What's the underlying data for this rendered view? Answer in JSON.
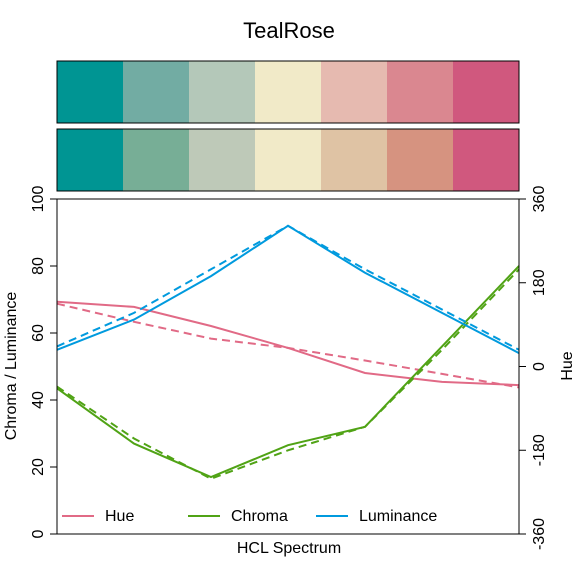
{
  "chart_data": {
    "type": "line",
    "title": "TealRose",
    "xlabel": "HCL Spectrum",
    "ylabel_left": "Chroma / Luminance",
    "ylabel_right": "Hue",
    "ylim_left": [
      0,
      100
    ],
    "yticks_left": [
      0,
      20,
      40,
      60,
      80,
      100
    ],
    "ylim_right": [
      -360,
      360
    ],
    "yticks_right": [
      -360,
      -180,
      0,
      180,
      360
    ],
    "x": [
      1,
      2,
      3,
      4,
      5,
      6,
      7
    ],
    "swatches_top": [
      "#009593",
      "#72ACA3",
      "#B4C8B9",
      "#F1EAC8",
      "#E6BAB0",
      "#DA8790",
      "#D0587E"
    ],
    "swatches_bottom": [
      "#009593",
      "#77AE96",
      "#BEC9B8",
      "#F1EAC8",
      "#DFC3A4",
      "#D69380",
      "#D0587E"
    ],
    "legend": {
      "placement": "bottom-left",
      "entries": [
        "Hue",
        "Chroma",
        "Luminance"
      ]
    },
    "series": [
      {
        "name": "Hue",
        "color": "#E16A86",
        "axis": "right",
        "solid": [
          139,
          128,
          87,
          40,
          -14,
          -33,
          -40
        ],
        "dashed": [
          135,
          96,
          60,
          40,
          13,
          -16,
          -45
        ]
      },
      {
        "name": "Chroma",
        "color": "#50A315",
        "axis": "left",
        "solid": [
          43.5,
          27,
          17,
          26.5,
          32,
          56,
          80
        ],
        "dashed": [
          44,
          28.5,
          16.5,
          25,
          32,
          55,
          79
        ]
      },
      {
        "name": "Luminance",
        "color": "#009ADE",
        "axis": "left",
        "solid": [
          55,
          64,
          77,
          92,
          78,
          66,
          54
        ],
        "dashed": [
          56,
          66,
          79,
          92,
          79,
          67,
          55
        ]
      }
    ]
  }
}
